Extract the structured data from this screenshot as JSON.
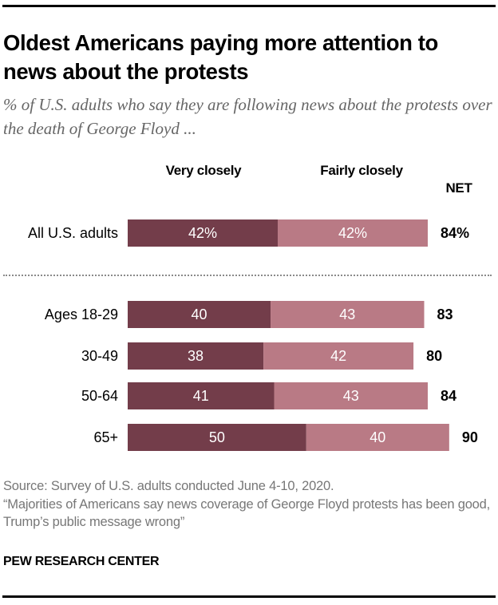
{
  "title": "Oldest Americans paying more attention to news about the protests",
  "subtitle": "% of U.S. adults who say they are following news about the protests over the death of George Floyd ...",
  "column_headers": {
    "very": "Very closely",
    "fairly": "Fairly closely",
    "net": "NET"
  },
  "footer": {
    "source": "Source: Survey of U.S. adults conducted June 4-10, 2020.",
    "report": "“Majorities of Americans say news coverage of George Floyd protests has been good, Trump’s public message wrong”",
    "brand": "PEW RESEARCH CENTER"
  },
  "colors": {
    "very_closely": "#733d4a",
    "fairly_closely": "#b97a85",
    "net_text": "#000000",
    "segment_text": "#ffffff"
  },
  "chart_data": {
    "type": "bar",
    "orientation": "horizontal",
    "stacked": true,
    "title": "Oldest Americans paying more attention to news about the protests",
    "subtitle": "% of U.S. adults who say they are following news about the protests over the death of George Floyd ...",
    "xlabel": "",
    "ylabel": "",
    "xlim": [
      0,
      100
    ],
    "grid": false,
    "legend": "column headers above bars",
    "categories": [
      "All U.S. adults",
      "Ages 18-29",
      "30-49",
      "50-64",
      "65+"
    ],
    "series": [
      {
        "name": "Very closely",
        "values": [
          42,
          40,
          38,
          41,
          50
        ],
        "labels": [
          "42%",
          "40",
          "38",
          "41",
          "50"
        ]
      },
      {
        "name": "Fairly closely",
        "values": [
          42,
          43,
          42,
          43,
          40
        ],
        "labels": [
          "42%",
          "43",
          "42",
          "43",
          "40"
        ]
      }
    ],
    "net": {
      "name": "NET",
      "values": [
        84,
        83,
        80,
        84,
        90
      ],
      "labels": [
        "84%",
        "83",
        "80",
        "84",
        "90"
      ]
    },
    "separator_after_index": 0
  }
}
